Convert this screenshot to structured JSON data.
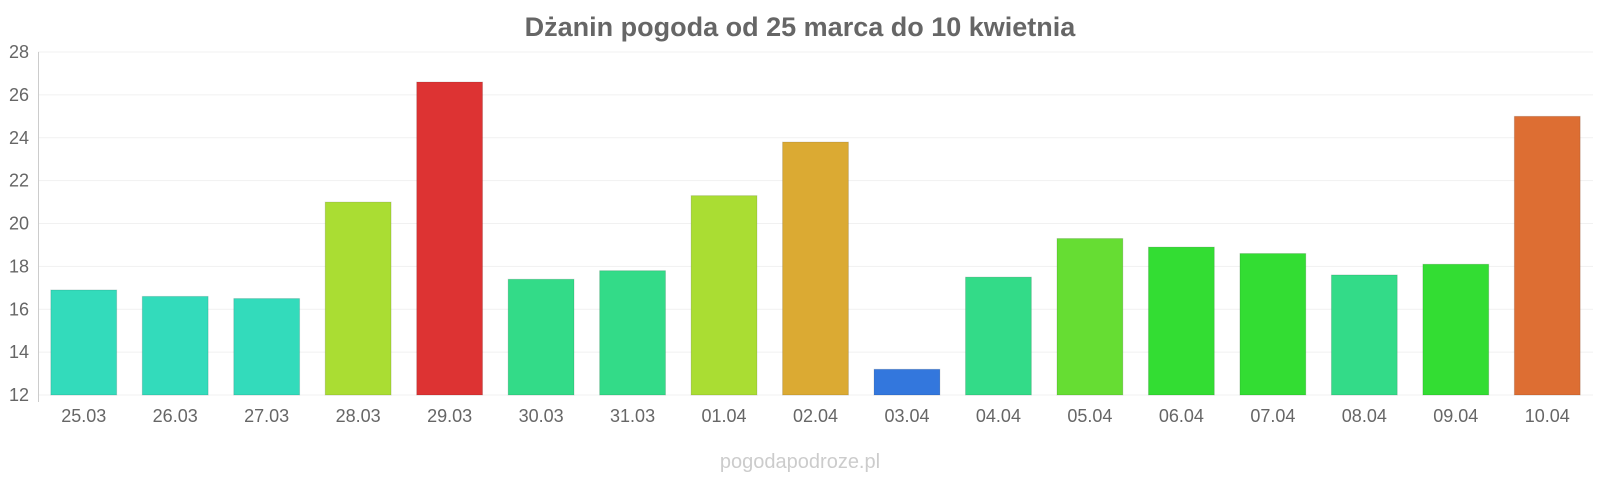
{
  "chart_data": {
    "type": "bar",
    "title": "Dżanin pogoda od 25 marca do 10 kwietnia",
    "xlabel": "",
    "ylabel": "",
    "categories": [
      "25.03",
      "26.03",
      "27.03",
      "28.03",
      "29.03",
      "30.03",
      "31.03",
      "01.04",
      "02.04",
      "03.04",
      "04.04",
      "05.04",
      "06.04",
      "07.04",
      "08.04",
      "09.04",
      "10.04"
    ],
    "values": [
      16.9,
      16.6,
      16.5,
      21.0,
      26.6,
      17.4,
      17.8,
      21.3,
      23.8,
      13.2,
      17.5,
      19.3,
      18.9,
      18.6,
      17.6,
      18.1,
      25.0
    ],
    "colors": [
      "#33dbbb",
      "#33dbbb",
      "#33dbbb",
      "#aadd33",
      "#dd3333",
      "#33db88",
      "#33db88",
      "#aadd33",
      "#dbaa33",
      "#3377dd",
      "#33db88",
      "#66dd33",
      "#33dd33",
      "#33dd33",
      "#33db88",
      "#33dd33",
      "#dd6e33"
    ],
    "ylim": [
      12,
      28
    ],
    "yticks": [
      12,
      14,
      16,
      18,
      20,
      22,
      24,
      26,
      28
    ],
    "grid": true,
    "legend": "none"
  },
  "watermark": "pogodapodroze.pl"
}
